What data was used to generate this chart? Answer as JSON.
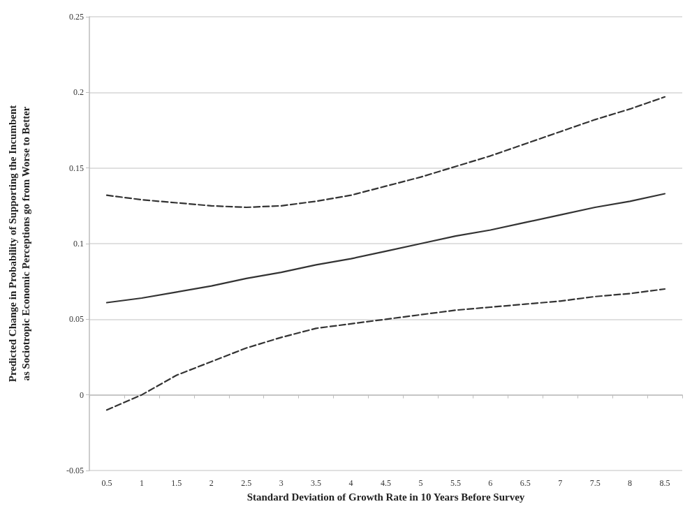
{
  "chart_data": {
    "type": "line",
    "xlabel": "Standard Deviation of Growth Rate in 10 Years Before Survey",
    "ylabel": "Predicted Change in Probability of Supporting the Incumbent as Sociotropic Economic Perceptions go from Worse to Better",
    "categories": [
      "0.5",
      "1",
      "1.5",
      "2",
      "2.5",
      "3",
      "3.5",
      "4",
      "4.5",
      "5",
      "5.5",
      "6",
      "6.5",
      "7",
      "7.5",
      "8",
      "8.5"
    ],
    "series": [
      {
        "color": "#333333",
        "line_style": "dashed",
        "values": [
          0.132,
          0.129,
          0.127,
          0.125,
          0.124,
          0.125,
          0.128,
          0.132,
          0.138,
          0.144,
          0.151,
          0.158,
          0.166,
          0.174,
          0.182,
          0.189,
          0.197
        ]
      },
      {
        "color": "#333333",
        "line_style": "solid",
        "values": [
          0.061,
          0.064,
          0.068,
          0.072,
          0.077,
          0.081,
          0.086,
          0.09,
          0.095,
          0.1,
          0.105,
          0.109,
          0.114,
          0.119,
          0.124,
          0.128,
          0.133
        ]
      },
      {
        "color": "#333333",
        "line_style": "dashed",
        "values": [
          -0.01,
          0.0,
          0.013,
          0.022,
          0.031,
          0.038,
          0.044,
          0.047,
          0.05,
          0.053,
          0.056,
          0.058,
          0.06,
          0.062,
          0.065,
          0.067,
          0.07
        ]
      }
    ],
    "ylim": [
      -0.05,
      0.25
    ],
    "yticks": [
      -0.05,
      0,
      0.05,
      0.1,
      0.15,
      0.2,
      0.25
    ],
    "grid": "y",
    "marker": "none"
  }
}
